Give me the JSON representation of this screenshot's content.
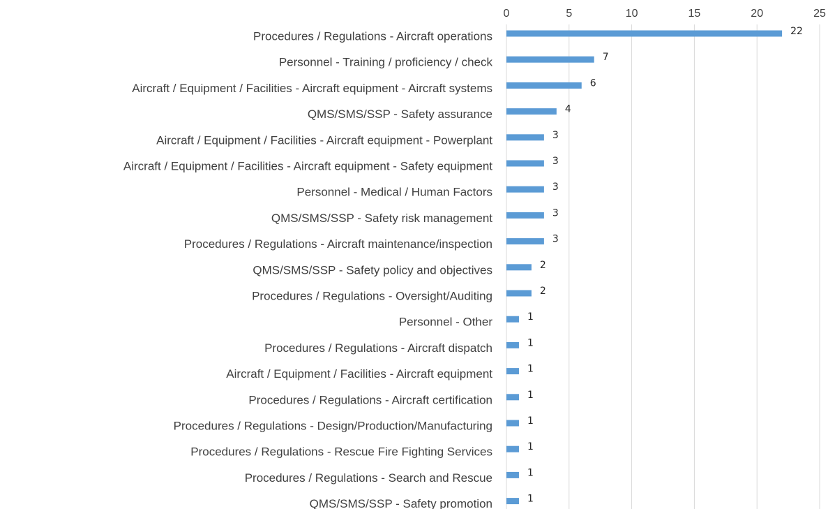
{
  "chart_data": {
    "type": "bar",
    "orientation": "horizontal",
    "categories": [
      "Procedures / Regulations - Aircraft operations",
      "Personnel - Training / proficiency / check",
      "Aircraft / Equipment / Facilities - Aircraft equipment - Aircraft systems",
      "QMS/SMS/SSP - Safety assurance",
      "Aircraft / Equipment / Facilities - Aircraft equipment - Powerplant",
      "Aircraft / Equipment / Facilities - Aircraft equipment - Safety equipment",
      "Personnel - Medical / Human Factors",
      "QMS/SMS/SSP - Safety risk management",
      "Procedures / Regulations - Aircraft maintenance/inspection",
      "QMS/SMS/SSP - Safety policy and objectives",
      "Procedures / Regulations - Oversight/Auditing",
      "Personnel - Other",
      "Procedures / Regulations - Aircraft dispatch",
      "Aircraft / Equipment / Facilities - Aircraft equipment",
      "Procedures / Regulations - Aircraft certification",
      "Procedures / Regulations - Design/Production/Manufacturing",
      "Procedures / Regulations - Rescue Fire Fighting Services",
      "Procedures / Regulations - Search and Rescue",
      "QMS/SMS/SSP - Safety promotion"
    ],
    "values": [
      22,
      7,
      6,
      4,
      3,
      3,
      3,
      3,
      3,
      2,
      2,
      1,
      1,
      1,
      1,
      1,
      1,
      1,
      1
    ],
    "color": "#5b9bd5",
    "xlim": [
      0,
      25
    ],
    "xticks": [
      0,
      5,
      10,
      15,
      20,
      25
    ],
    "grid": true,
    "value_labels_shown": true
  }
}
